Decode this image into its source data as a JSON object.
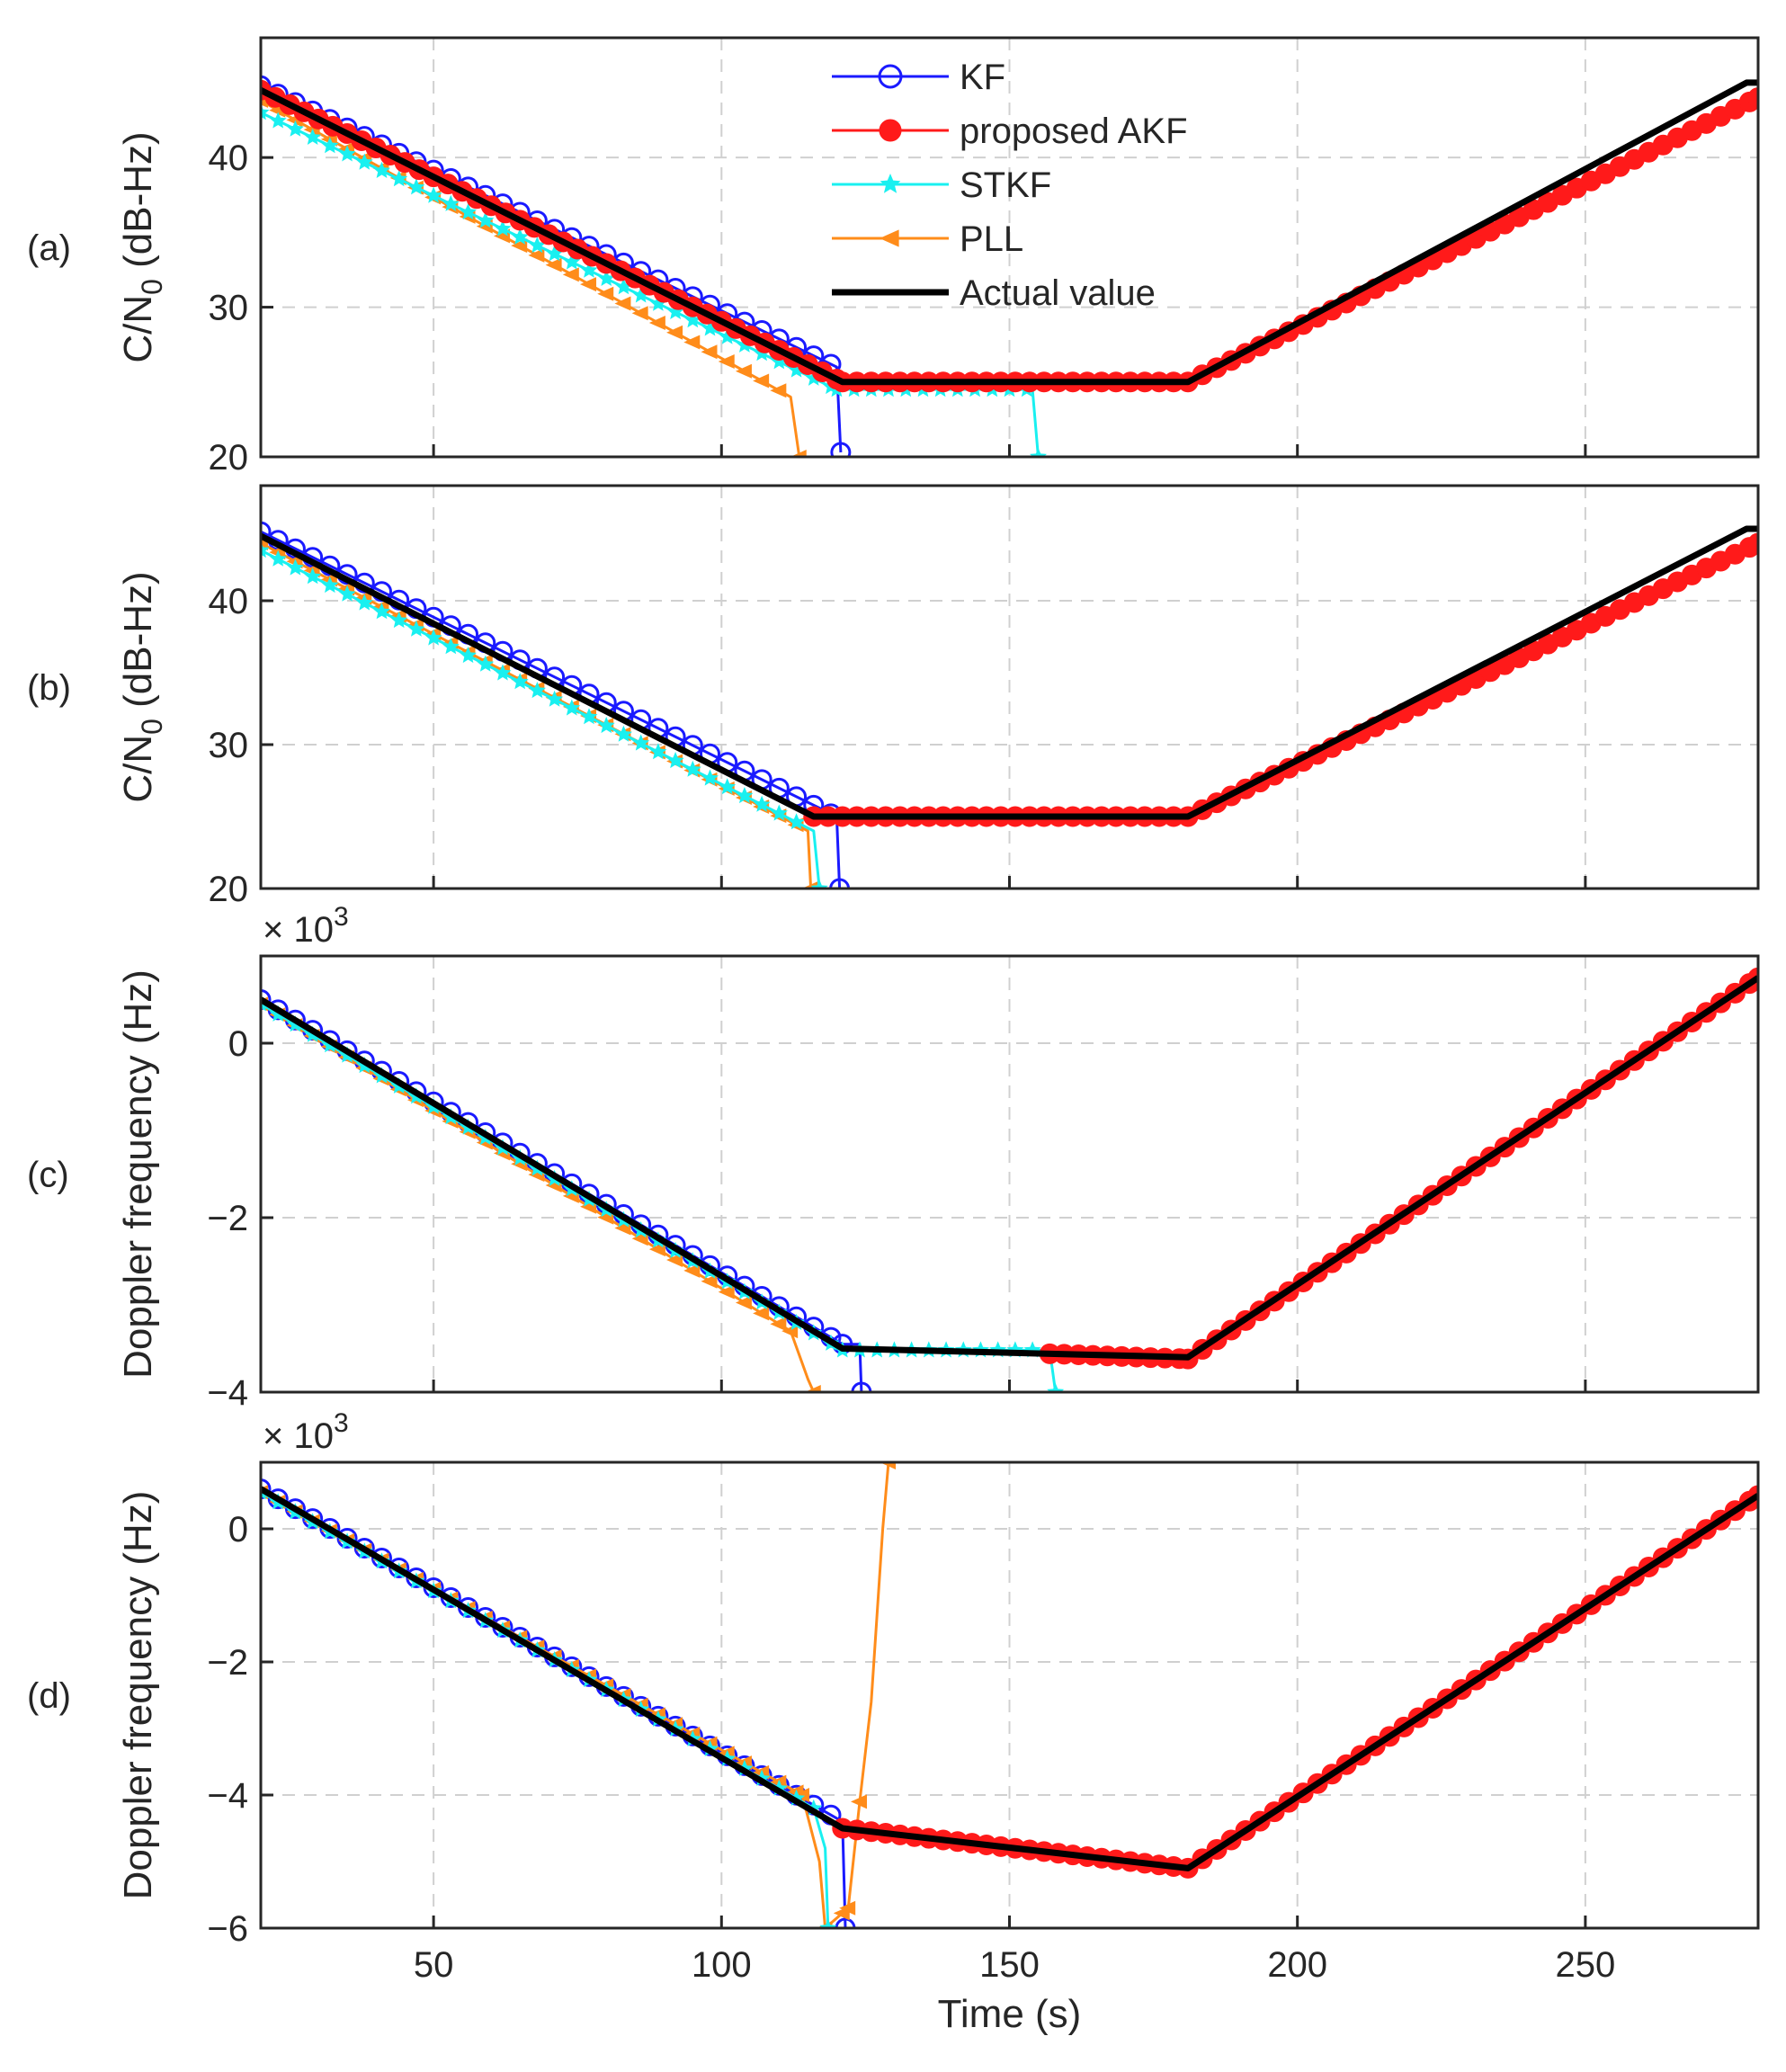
{
  "figure": {
    "x_label": "Time (s)",
    "x_ticks": [
      "50",
      "100",
      "150",
      "200",
      "250"
    ],
    "legend": [
      {
        "label": "KF",
        "color": "#0000ff",
        "marker": "circle-open"
      },
      {
        "label": "proposed AKF",
        "color": "#ff0000",
        "marker": "circle-filled"
      },
      {
        "label": "STKF",
        "color": "#00ffff",
        "marker": "star"
      },
      {
        "label": "PLL",
        "color": "#ff7f00",
        "marker": "triangle-left"
      },
      {
        "label": "Actual value",
        "color": "#000000",
        "marker": "none"
      }
    ]
  },
  "chart_data": [
    {
      "type": "line",
      "panel_label": "(a)",
      "ylabel_main": "C/N",
      "ylabel_sub": "0",
      "ylabel_unit": "(dB-Hz)",
      "xlim": [
        20,
        280
      ],
      "ylim": [
        20,
        48
      ],
      "y_ticks": [
        20,
        30,
        40
      ],
      "y_tick_labels": [
        "20",
        "30",
        "40"
      ],
      "grid": true,
      "series": [
        {
          "name": "Actual value",
          "points": [
            [
              20,
              44.5
            ],
            [
              121,
              25
            ],
            [
              181,
              25
            ],
            [
              278,
              45
            ],
            [
              280,
              45
            ]
          ]
        },
        {
          "name": "proposed AKF",
          "points": [
            [
              20,
              44.5
            ],
            [
              121,
              25
            ],
            [
              181,
              25
            ],
            [
              280,
              44
            ]
          ]
        },
        {
          "name": "KF",
          "points": [
            [
              20,
              44.8
            ],
            [
              120,
              26
            ],
            [
              120.7,
              20.3
            ]
          ]
        },
        {
          "name": "STKF",
          "points": [
            [
              20,
              43
            ],
            [
              120,
              24.5
            ],
            [
              154,
              24.5
            ],
            [
              155,
              20
            ]
          ]
        },
        {
          "name": "PLL",
          "points": [
            [
              20,
              43.8
            ],
            [
              112,
              24
            ],
            [
              113.5,
              20
            ]
          ]
        }
      ]
    },
    {
      "type": "line",
      "panel_label": "(b)",
      "ylabel_main": "C/N",
      "ylabel_sub": "0",
      "ylabel_unit": "(dB-Hz)",
      "xlim": [
        20,
        280
      ],
      "ylim": [
        20,
        48
      ],
      "y_ticks": [
        20,
        30,
        40
      ],
      "y_tick_labels": [
        "20",
        "30",
        "40"
      ],
      "grid": true,
      "series": [
        {
          "name": "Actual value",
          "points": [
            [
              20,
              44.5
            ],
            [
              116,
              25
            ],
            [
              181,
              25
            ],
            [
              278,
              45
            ],
            [
              280,
              45
            ]
          ]
        },
        {
          "name": "proposed AKF",
          "points": [
            [
              116,
              25
            ],
            [
              181,
              25
            ],
            [
              280,
              44
            ]
          ]
        },
        {
          "name": "KF",
          "points": [
            [
              20,
              44.8
            ],
            [
              120,
              25
            ],
            [
              120.5,
              20
            ]
          ]
        },
        {
          "name": "STKF",
          "points": [
            [
              20,
              43.5
            ],
            [
              116,
              24
            ],
            [
              117,
              20
            ]
          ]
        },
        {
          "name": "PLL",
          "points": [
            [
              20,
              44
            ],
            [
              115,
              24
            ],
            [
              115.5,
              20
            ]
          ]
        }
      ]
    },
    {
      "type": "line",
      "panel_label": "(c)",
      "ylabel_main": "Doppler frequency (Hz)",
      "exponent_label": "× 10",
      "exponent_power": "3",
      "xlim": [
        20,
        280
      ],
      "ylim": [
        -4,
        1
      ],
      "y_ticks": [
        -4,
        -2,
        0
      ],
      "y_tick_labels": [
        "−4",
        "−2",
        "0"
      ],
      "grid": true,
      "series": [
        {
          "name": "Actual value",
          "points": [
            [
              20,
              0.5
            ],
            [
              121,
              -3.5
            ],
            [
              181,
              -3.6
            ],
            [
              280,
              0.75
            ]
          ]
        },
        {
          "name": "proposed AKF",
          "points": [
            [
              157,
              -3.56
            ],
            [
              181,
              -3.62
            ],
            [
              280,
              0.75
            ]
          ]
        },
        {
          "name": "KF",
          "points": [
            [
              20,
              0.5
            ],
            [
              121,
              -3.45
            ],
            [
              124,
              -3.45
            ],
            [
              124.3,
              -4
            ]
          ]
        },
        {
          "name": "STKF",
          "points": [
            [
              20,
              0.45
            ],
            [
              121,
              -3.52
            ],
            [
              157,
              -3.52
            ],
            [
              158,
              -4
            ]
          ]
        },
        {
          "name": "PLL",
          "points": [
            [
              20,
              0.45
            ],
            [
              112,
              -3.3
            ],
            [
              115,
              -3.85
            ],
            [
              116,
              -4
            ]
          ]
        }
      ]
    },
    {
      "type": "line",
      "panel_label": "(d)",
      "ylabel_main": "Doppler frequency (Hz)",
      "exponent_label": "× 10",
      "exponent_power": "3",
      "xlim": [
        20,
        280
      ],
      "ylim": [
        -6,
        1
      ],
      "y_ticks": [
        -6,
        -4,
        -2,
        0
      ],
      "y_tick_labels": [
        "−6",
        "−4",
        "−2",
        "0"
      ],
      "grid": true,
      "series": [
        {
          "name": "Actual value",
          "points": [
            [
              20,
              0.6
            ],
            [
              121,
              -4.5
            ],
            [
              181,
              -5.1
            ],
            [
              280,
              0.5
            ]
          ]
        },
        {
          "name": "proposed AKF",
          "points": [
            [
              121,
              -4.5
            ],
            [
              181,
              -5.1
            ],
            [
              280,
              0.5
            ]
          ]
        },
        {
          "name": "KF",
          "points": [
            [
              20,
              0.6
            ],
            [
              121,
              -4.4
            ],
            [
              121.5,
              -6
            ]
          ]
        },
        {
          "name": "STKF",
          "points": [
            [
              20,
              0.55
            ],
            [
              116,
              -4.2
            ],
            [
              118,
              -4.8
            ],
            [
              118.5,
              -6
            ]
          ]
        },
        {
          "name": "PLL",
          "points": [
            [
              20,
              0.55
            ],
            [
              114,
              -4.0
            ],
            [
              117,
              -5.0
            ],
            [
              118,
              -6
            ],
            [
              122,
              -5.7
            ],
            [
              124,
              -4.1
            ],
            [
              126,
              -2.6
            ],
            [
              127,
              -1.3
            ],
            [
              128,
              0
            ],
            [
              129,
              1
            ]
          ]
        }
      ]
    }
  ]
}
